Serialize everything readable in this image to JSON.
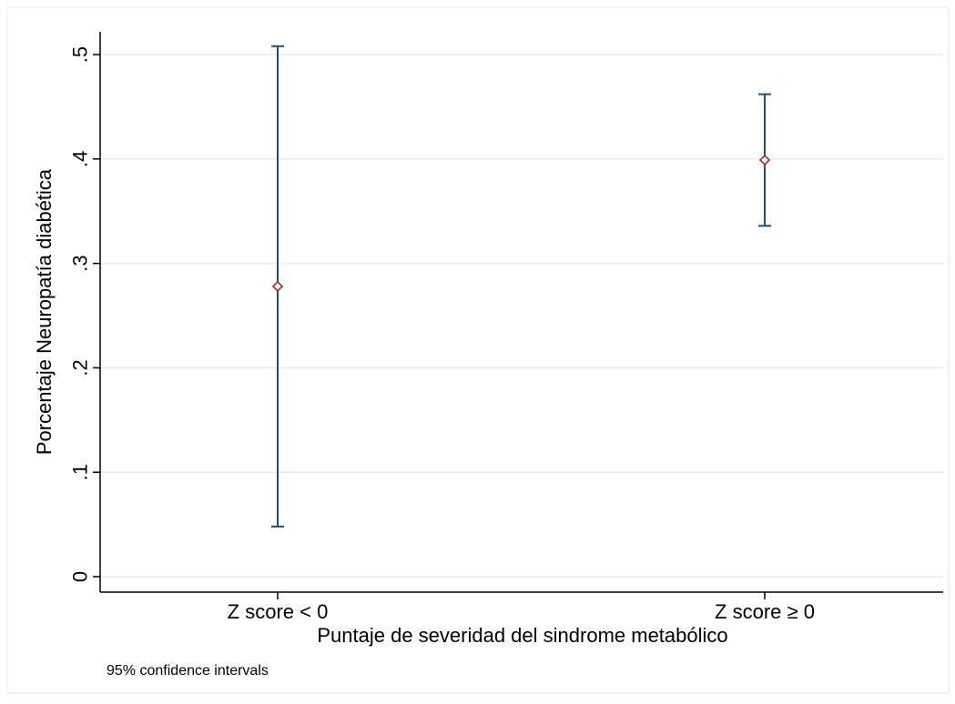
{
  "chart_data": {
    "type": "errorbar",
    "title": "",
    "xlabel": "Puntaje de severidad del sindrome metabólico",
    "ylabel": "Porcentaje Neuropatía diabética",
    "note": "95% confidence intervals",
    "ylim": [
      0,
      0.5
    ],
    "yticks": [
      0,
      0.1,
      0.2,
      0.3,
      0.4,
      0.5
    ],
    "ytick_labels": [
      "0",
      ".1",
      ".2",
      ".3",
      ".4",
      ".5"
    ],
    "grid": true,
    "categories": [
      "Z score < 0",
      "Z score ≥ 0"
    ],
    "points": [
      {
        "category": "Z score < 0",
        "estimate": 0.278,
        "ci_low": 0.048,
        "ci_high": 0.508
      },
      {
        "category": "Z score ≥ 0",
        "estimate": 0.399,
        "ci_low": 0.336,
        "ci_high": 0.462
      }
    ],
    "colors": {
      "ci_line": "#1f4e79",
      "marker": "#b22222",
      "grid": "#e4ecef",
      "axis": "#000000"
    }
  }
}
